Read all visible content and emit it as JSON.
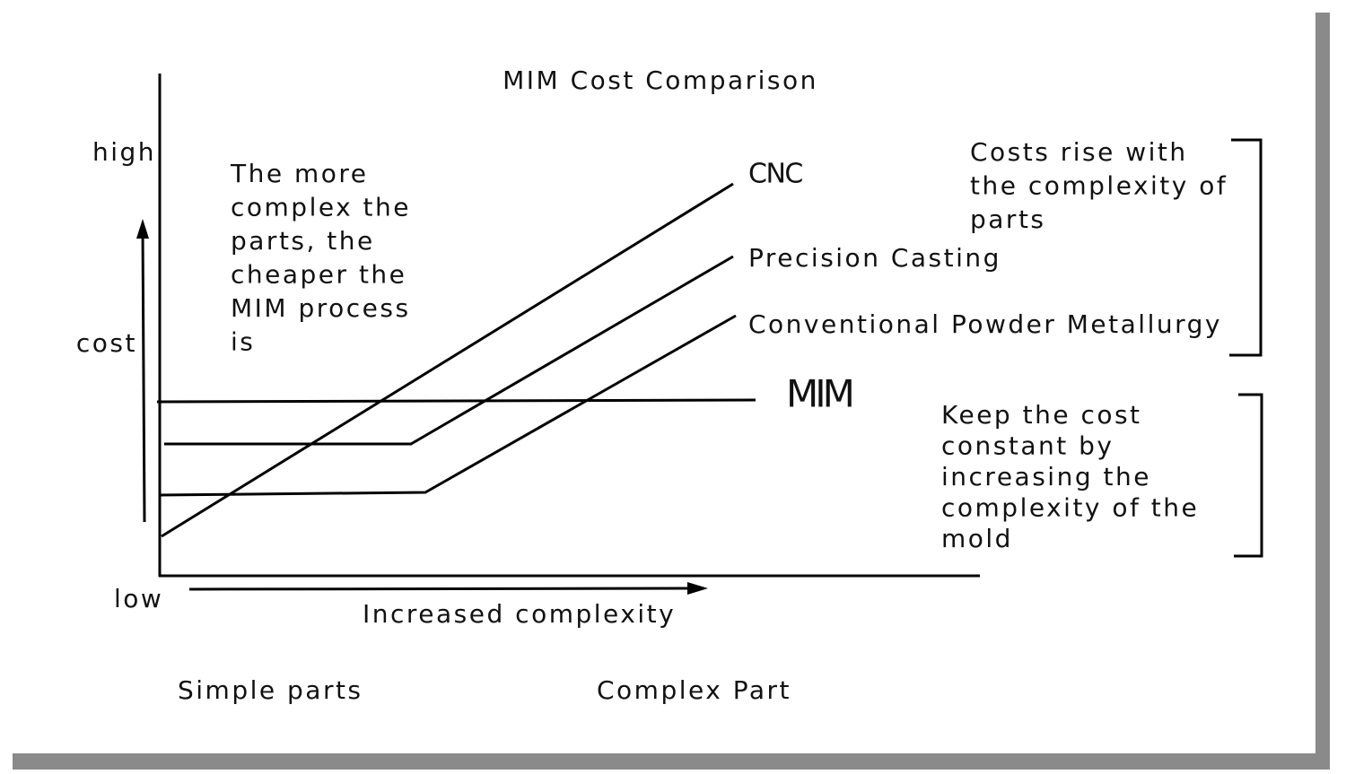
{
  "title": "MIM Cost Comparison",
  "y_axis": {
    "high": "high",
    "label": "cost",
    "low": "low"
  },
  "x_axis": {
    "label": "Increased complexity",
    "left": "Simple parts",
    "right": "Complex Part"
  },
  "note_left": [
    "The more",
    "complex the",
    "parts, the",
    "cheaper the",
    "MIM process",
    "is"
  ],
  "lines": [
    {
      "label": "CNC"
    },
    {
      "label": "Precision Casting"
    },
    {
      "label": "Conventional Powder Metallurgy"
    },
    {
      "label": "MIM"
    }
  ],
  "note_top_right": [
    "Costs rise with",
    "the complexity of",
    "parts"
  ],
  "note_bottom_right": [
    "Keep the cost",
    "constant by",
    "increasing the",
    "complexity of the",
    "mold"
  ]
}
